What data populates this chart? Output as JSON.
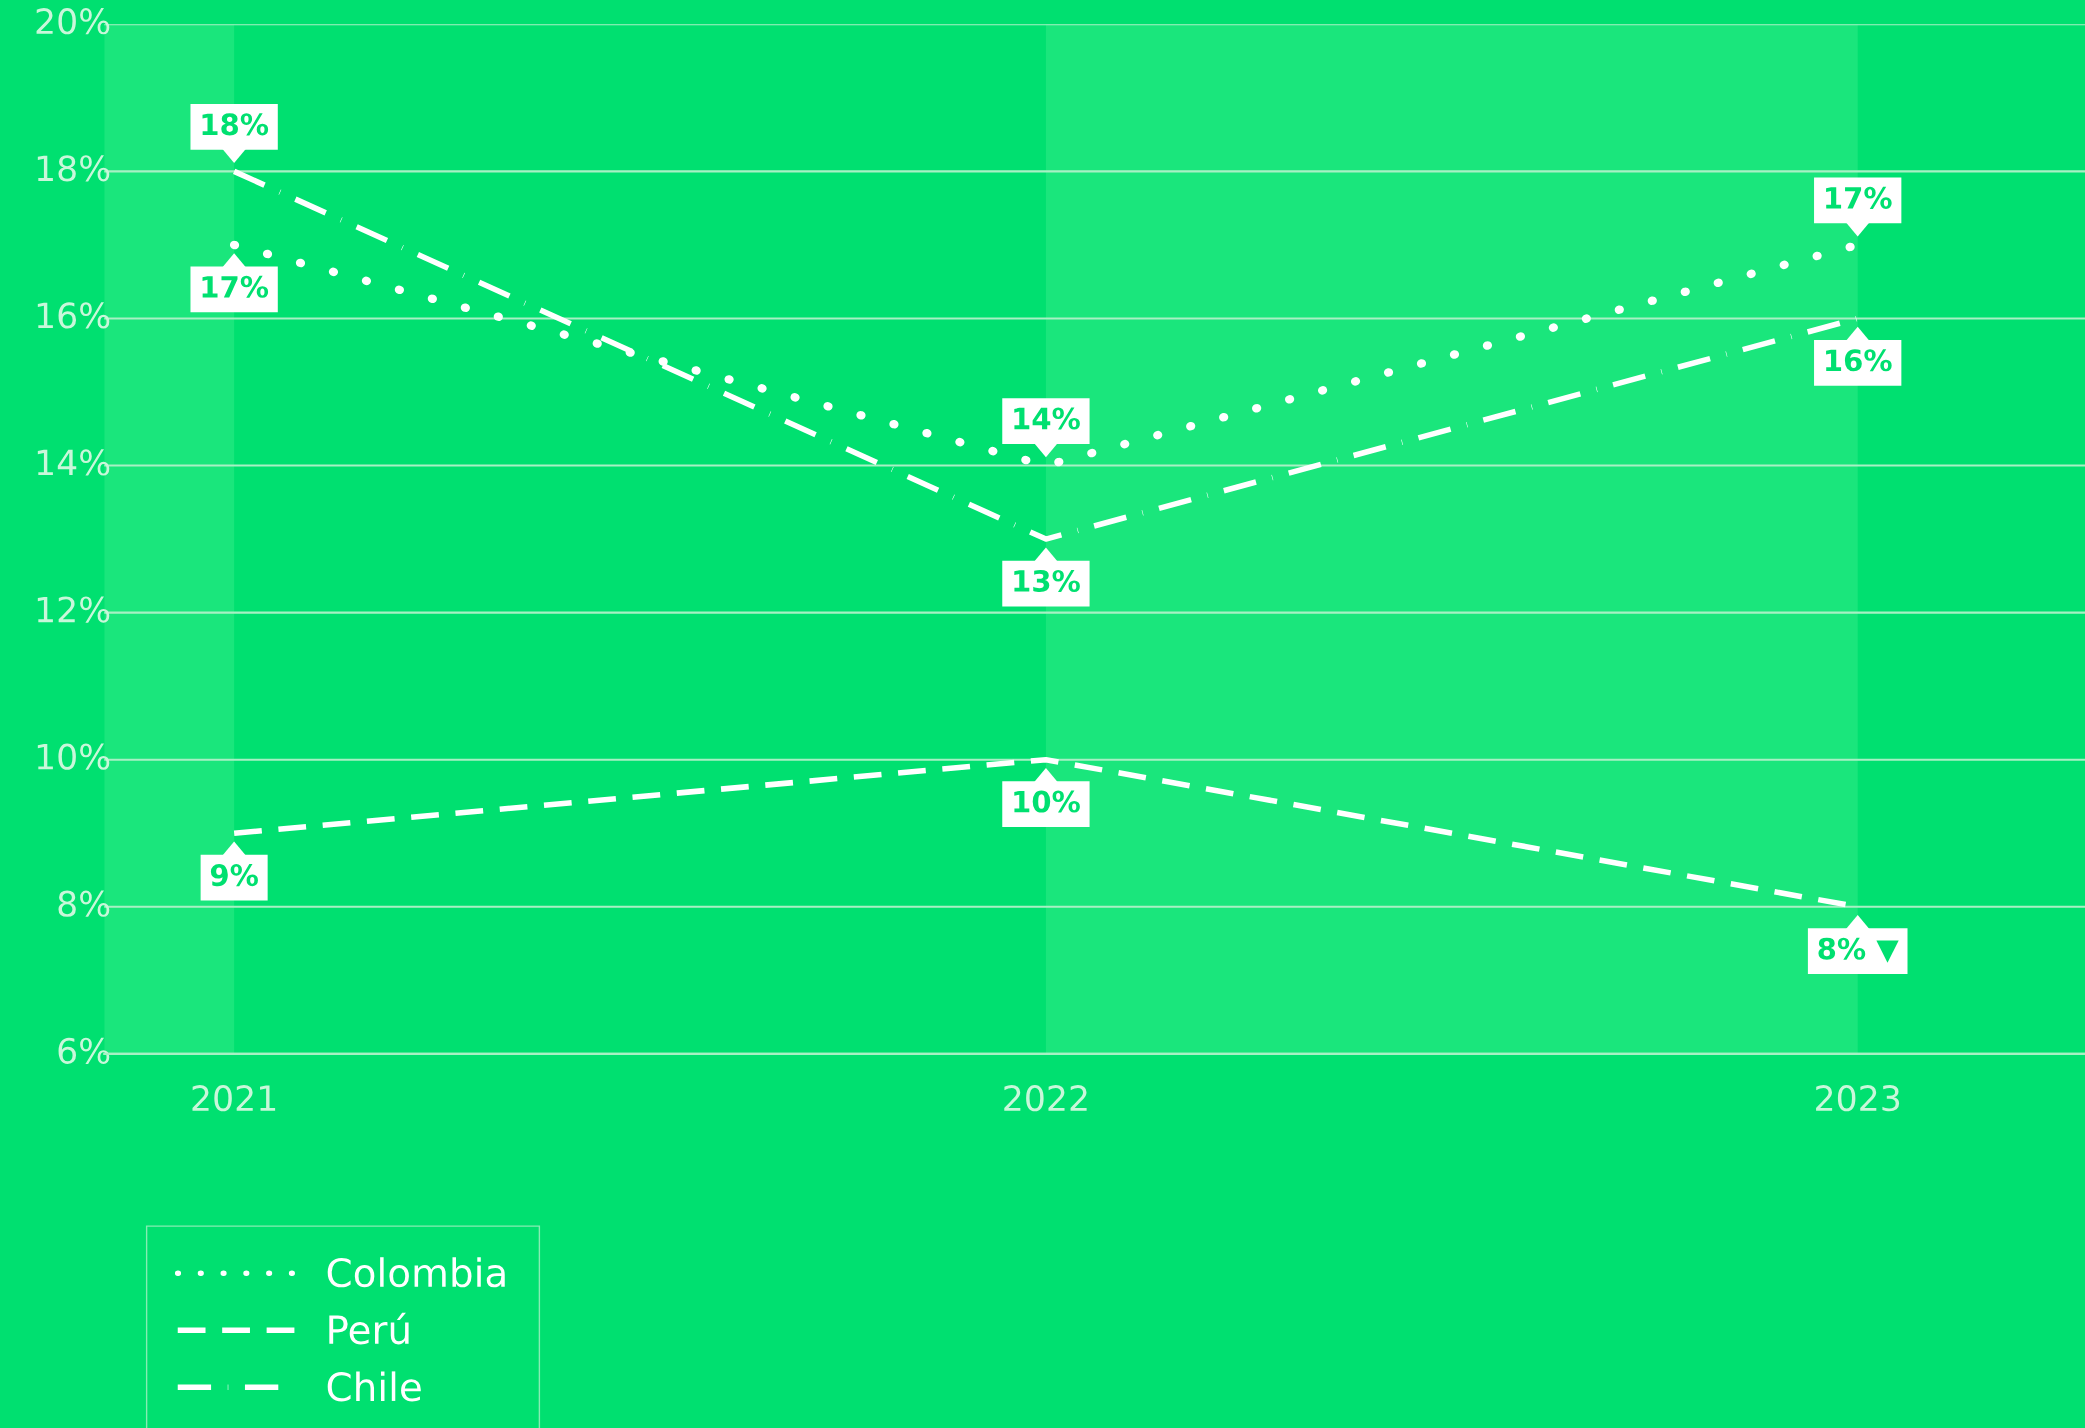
{
  "chart_data": {
    "type": "line",
    "x": [
      2021,
      2022,
      2023
    ],
    "xlim": [
      2020.84,
      2023.28
    ],
    "xticks": [
      2021,
      2022,
      2023
    ],
    "ylim": [
      6,
      20
    ],
    "yticks": [
      {
        "value": 6,
        "label": "6%"
      },
      {
        "value": 8,
        "label": "8%"
      },
      {
        "value": 10,
        "label": "10%"
      },
      {
        "value": 12,
        "label": "12%"
      },
      {
        "value": 14,
        "label": "14%"
      },
      {
        "value": 16,
        "label": "16%"
      },
      {
        "value": 18,
        "label": "18%"
      },
      {
        "value": 20,
        "label": "20%"
      }
    ],
    "grid": "y",
    "legend": "bottom left",
    "bands": [
      {
        "axis": "x",
        "from": 2020.84,
        "to": 2021,
        "color": "#1ae67c"
      },
      {
        "axis": "x",
        "from": 2022,
        "to": 2023,
        "color": "#1ae67c"
      }
    ],
    "series": [
      {
        "name": "Colombia",
        "color": "#ffffff",
        "line_style": "dotted",
        "values": [
          17,
          14,
          17
        ],
        "value_labels": [
          "17%",
          "14%",
          "17%"
        ]
      },
      {
        "name": "Perú",
        "color": "#ffffff",
        "line_style": "dashed",
        "values": [
          9,
          10,
          8
        ],
        "value_labels": [
          "9%",
          "10%",
          "8% ▼"
        ]
      },
      {
        "name": "Chile",
        "color": "#ffffff",
        "line_style": "dashdot",
        "values": [
          18,
          13,
          16
        ],
        "value_labels": [
          "18%",
          "13%",
          "16%"
        ]
      }
    ]
  }
}
